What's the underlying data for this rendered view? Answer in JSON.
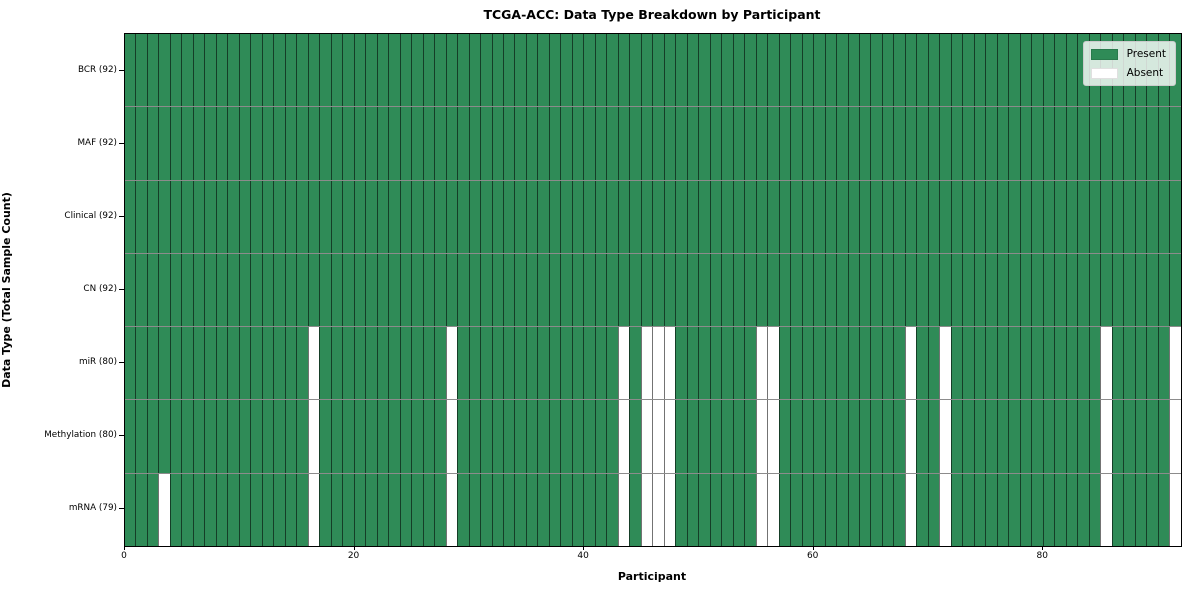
{
  "title": "TCGA-ACC: Data Type Breakdown by Participant",
  "axes": {
    "xlabel": "Participant",
    "ylabel": "Data Type (Total Sample Count)"
  },
  "legend": {
    "entries": [
      {
        "label": "Present",
        "color": "#2f8b57"
      },
      {
        "label": "Absent",
        "color": "#ffffff"
      }
    ]
  },
  "colors": {
    "present": "#2f8b57",
    "absent": "#ffffff",
    "cell_edge": "rgba(0,0,0,0.55)",
    "spine": "#000000"
  },
  "chart_data": {
    "type": "heatmap",
    "title": "TCGA-ACC: Data Type Breakdown by Participant",
    "xlabel": "Participant",
    "ylabel": "Data Type (Total Sample Count)",
    "n_participants": 92,
    "xlim": [
      0,
      92
    ],
    "x_ticks": [
      0,
      20,
      40,
      60,
      80
    ],
    "grid": "cell-borders",
    "legend_position": "upper right",
    "value_encoding": {
      "present": 1,
      "absent": 0
    },
    "rows": [
      {
        "label": "BCR (92)",
        "total": 92,
        "absent_participants": []
      },
      {
        "label": "MAF (92)",
        "total": 92,
        "absent_participants": []
      },
      {
        "label": "Clinical (92)",
        "total": 92,
        "absent_participants": []
      },
      {
        "label": "CN (92)",
        "total": 92,
        "absent_participants": []
      },
      {
        "label": "miR (80)",
        "total": 80,
        "absent_participants": [
          16,
          28,
          43,
          45,
          46,
          47,
          55,
          56,
          68,
          71,
          85,
          91
        ]
      },
      {
        "label": "Methylation (80)",
        "total": 80,
        "absent_participants": [
          16,
          28,
          43,
          45,
          46,
          47,
          55,
          56,
          68,
          71,
          85,
          91
        ]
      },
      {
        "label": "mRNA (79)",
        "total": 79,
        "absent_participants": [
          3,
          16,
          28,
          43,
          45,
          46,
          47,
          55,
          56,
          68,
          71,
          85,
          91
        ]
      }
    ]
  }
}
